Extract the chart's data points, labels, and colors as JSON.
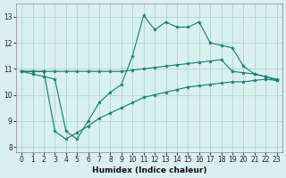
{
  "xlabel": "Humidex (Indice chaleur)",
  "hours": [
    0,
    1,
    2,
    3,
    4,
    5,
    6,
    7,
    8,
    9,
    10,
    11,
    12,
    13,
    14,
    15,
    16,
    17,
    18,
    19,
    20,
    21,
    22,
    23
  ],
  "mean_line": [
    10.9,
    10.8,
    10.7,
    10.6,
    8.6,
    8.3,
    9.0,
    9.7,
    10.1,
    10.4,
    11.5,
    13.05,
    12.5,
    12.8,
    12.6,
    12.6,
    12.8,
    12.0,
    11.9,
    11.8,
    11.1,
    10.8,
    10.7,
    10.55
  ],
  "upper_line": [
    10.9,
    10.9,
    10.9,
    10.9,
    10.9,
    10.9,
    10.9,
    10.9,
    10.9,
    10.9,
    10.95,
    11.0,
    11.05,
    11.1,
    11.15,
    11.2,
    11.25,
    11.3,
    11.35,
    10.9,
    10.85,
    10.8,
    10.7,
    10.6
  ],
  "lower_line": [
    10.9,
    10.9,
    10.9,
    8.6,
    8.3,
    8.55,
    8.8,
    9.1,
    9.3,
    9.5,
    9.7,
    9.9,
    10.0,
    10.1,
    10.2,
    10.3,
    10.35,
    10.4,
    10.45,
    10.5,
    10.5,
    10.55,
    10.6,
    10.55
  ],
  "line_color": "#1a7a6e",
  "bg_color": "#d8f0ef",
  "grid_color": "#a8cece",
  "ylim": [
    7.8,
    13.5
  ],
  "xlim": [
    -0.5,
    23.5
  ],
  "yticks": [
    8,
    9,
    10,
    11,
    12,
    13
  ],
  "xticks": [
    0,
    1,
    2,
    3,
    4,
    5,
    6,
    7,
    8,
    9,
    10,
    11,
    12,
    13,
    14,
    15,
    16,
    17,
    18,
    19,
    20,
    21,
    22,
    23
  ]
}
